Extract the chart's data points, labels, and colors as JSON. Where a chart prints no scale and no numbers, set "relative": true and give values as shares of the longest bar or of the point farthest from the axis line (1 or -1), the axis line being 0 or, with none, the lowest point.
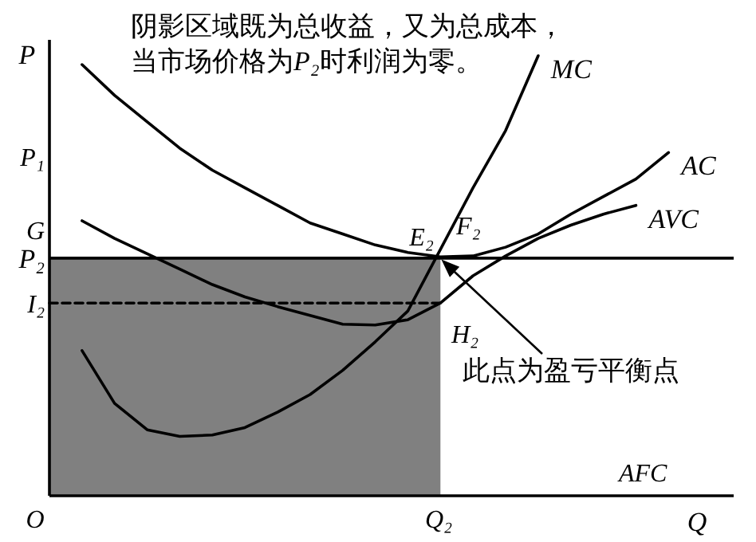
{
  "chart_data": {
    "type": "line",
    "relative": true,
    "title": "阴影区域既为总收益，又为总成本，",
    "subtitle": "当市场价格为P₂时利润为零。",
    "xlabel": "Q",
    "ylabel": "P",
    "grid": false,
    "legend": false,
    "marker": "none",
    "categories": [
      null,
      null,
      null,
      null,
      null,
      null,
      null,
      null,
      null,
      null,
      null,
      null,
      null,
      null,
      null,
      null,
      null,
      null,
      null,
      null,
      null,
      null
    ],
    "series": [
      {
        "type": "area",
        "color": "#808080",
        "values": [
          0.54,
          0.54,
          0.54,
          0.54,
          0.54,
          0.54,
          0.54,
          0.54,
          0.54,
          0.54,
          0.54,
          0.54,
          0.54,
          null,
          null,
          null,
          null,
          null,
          null,
          null,
          null,
          null
        ]
      },
      {
        "name": "MC",
        "color": "#000000",
        "values": [
          null,
          0.33,
          0.21,
          0.15,
          0.135,
          0.138,
          0.155,
          0.19,
          0.23,
          0.285,
          0.35,
          0.42,
          0.56,
          0.7,
          0.83,
          1,
          null,
          null,
          null,
          null,
          null,
          null
        ]
      },
      {
        "name": "AC",
        "color": "#000000",
        "values": [
          null,
          0.98,
          0.91,
          0.85,
          0.79,
          0.74,
          0.7,
          0.66,
          0.62,
          0.595,
          0.57,
          0.553,
          0.543,
          0.545,
          0.565,
          0.595,
          0.64,
          0.68,
          0.72,
          0.78,
          null,
          null
        ]
      },
      {
        "name": "AVC",
        "color": "#000000",
        "values": [
          null,
          0.625,
          0.585,
          0.55,
          0.515,
          0.48,
          0.452,
          0.43,
          0.41,
          0.39,
          0.388,
          0.4,
          0.438,
          0.5,
          0.545,
          0.585,
          0.615,
          0.64,
          0.66,
          null,
          null,
          null
        ]
      },
      {
        "color": "#000000",
        "line_style": "dashed",
        "values": [
          0.438,
          0.438,
          0.438,
          0.438,
          0.438,
          0.438,
          0.438,
          0.438,
          0.438,
          0.438,
          0.438,
          0.438,
          0.438,
          null,
          null,
          null,
          null,
          null,
          null,
          null,
          null,
          null
        ]
      }
    ],
    "ref_lines": [
      {
        "axis": "y",
        "value": 0.54,
        "label": "P₂"
      }
    ],
    "annotations": [
      "P₁",
      "G",
      "I₂",
      "E₂",
      "F₂",
      "H₂",
      "此点为盈亏平衡点",
      "AFC",
      "O",
      "Q₂"
    ]
  }
}
